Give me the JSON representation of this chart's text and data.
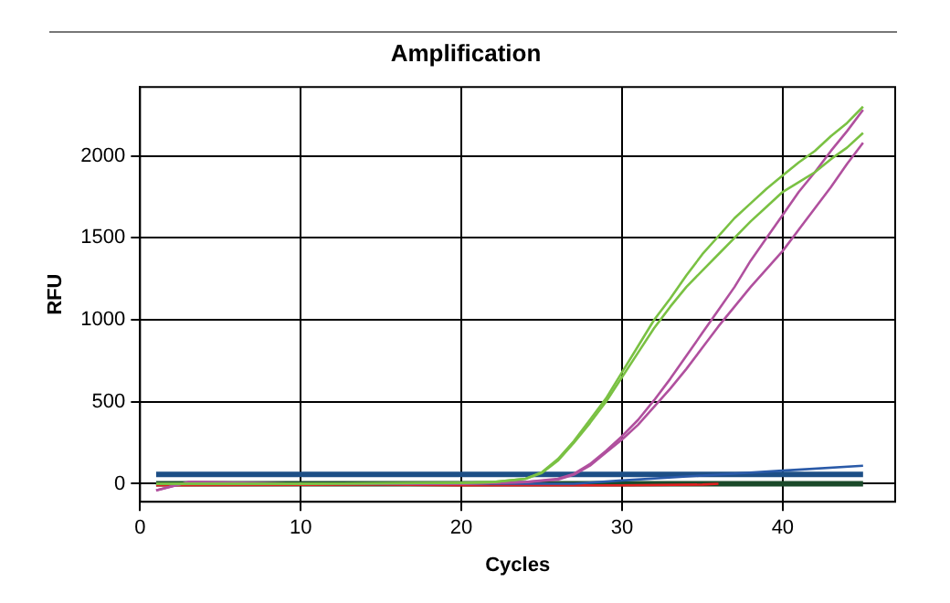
{
  "chart_data": {
    "type": "line",
    "title": "Amplification",
    "xlabel": "Cycles",
    "ylabel": "RFU",
    "xlim": [
      0,
      47
    ],
    "xticks": [
      0,
      10,
      20,
      30,
      40
    ],
    "ylim": [
      -110,
      2420
    ],
    "yticks": [
      0,
      500,
      1000,
      1500,
      2000
    ],
    "grid": true,
    "legend": false,
    "marker": "none",
    "line_style": "solid",
    "series": [
      {
        "color": "#7ac143",
        "x": [
          1,
          10,
          20,
          22,
          24,
          25,
          26,
          27,
          28,
          29,
          30,
          31,
          32,
          33,
          34,
          35,
          36,
          37,
          38,
          39,
          40,
          41,
          42,
          43,
          44,
          45
        ],
        "values": [
          0,
          0,
          5,
          10,
          30,
          70,
          150,
          260,
          390,
          520,
          680,
          840,
          1000,
          1130,
          1270,
          1400,
          1510,
          1620,
          1710,
          1800,
          1880,
          1960,
          2030,
          2120,
          2200,
          2300
        ]
      },
      {
        "color": "#7ac143",
        "x": [
          1,
          10,
          20,
          22,
          24,
          25,
          26,
          27,
          28,
          29,
          30,
          31,
          32,
          33,
          34,
          35,
          36,
          37,
          38,
          39,
          40,
          41,
          42,
          43,
          44,
          45
        ],
        "values": [
          0,
          0,
          5,
          10,
          30,
          65,
          140,
          250,
          370,
          500,
          650,
          800,
          950,
          1080,
          1200,
          1300,
          1400,
          1500,
          1600,
          1690,
          1780,
          1840,
          1900,
          1980,
          2050,
          2140
        ]
      },
      {
        "color": "#b0509e",
        "x": [
          1,
          3,
          10,
          20,
          24,
          26,
          27,
          28,
          29,
          30,
          31,
          32,
          33,
          34,
          35,
          36,
          37,
          38,
          39,
          40,
          41,
          42,
          43,
          44,
          45
        ],
        "values": [
          -40,
          10,
          0,
          0,
          10,
          30,
          60,
          120,
          200,
          290,
          390,
          510,
          640,
          780,
          920,
          1060,
          1200,
          1360,
          1500,
          1640,
          1780,
          1900,
          2030,
          2150,
          2280
        ]
      },
      {
        "color": "#b0509e",
        "x": [
          1,
          3,
          10,
          20,
          24,
          26,
          27,
          28,
          29,
          30,
          31,
          32,
          33,
          34,
          35,
          36,
          37,
          38,
          39,
          40,
          41,
          42,
          43,
          44,
          45
        ],
        "values": [
          -40,
          10,
          0,
          0,
          10,
          25,
          55,
          110,
          190,
          270,
          360,
          470,
          580,
          700,
          830,
          960,
          1080,
          1200,
          1310,
          1420,
          1550,
          1680,
          1810,
          1950,
          2080
        ]
      },
      {
        "color": "#2a5aa8",
        "x": [
          1,
          20,
          27,
          30,
          35,
          40,
          45
        ],
        "values": [
          0,
          0,
          0,
          20,
          50,
          80,
          110
        ]
      },
      {
        "color": "#e02020",
        "x": [
          1,
          15,
          20,
          25,
          30,
          35,
          36
        ],
        "values": [
          -10,
          -5,
          -10,
          -10,
          -10,
          -5,
          0
        ]
      },
      {
        "color": "#1d4f86",
        "x": [
          1,
          45
        ],
        "values": [
          57,
          57
        ]
      },
      {
        "color": "#1b4a2a",
        "x": [
          1,
          45
        ],
        "values": [
          0,
          0
        ]
      }
    ]
  }
}
